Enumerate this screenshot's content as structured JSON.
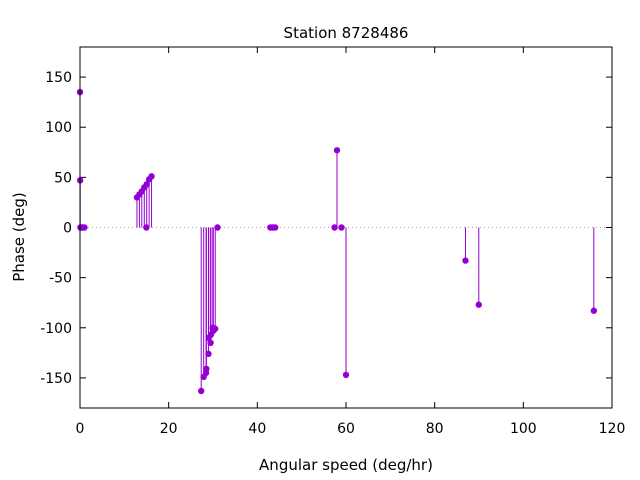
{
  "chart_data": {
    "type": "scatter",
    "style": "impulses-with-points",
    "title": "Station 8728486",
    "xlabel": "Angular speed (deg/hr)",
    "ylabel": "Phase (deg)",
    "xlim": [
      0,
      120
    ],
    "ylim": [
      -180,
      180
    ],
    "xticks": [
      0,
      20,
      40,
      60,
      80,
      100,
      120
    ],
    "yticks": [
      -150,
      -100,
      -50,
      0,
      50,
      100,
      150
    ],
    "grid": false,
    "zero_line": true,
    "legend": "none",
    "series_color": "#9400d3",
    "points": [
      {
        "x": 0.0,
        "y": 135
      },
      {
        "x": 0.04,
        "y": 47
      },
      {
        "x": 0.08,
        "y": 0
      },
      {
        "x": 0.5,
        "y": 0
      },
      {
        "x": 0.55,
        "y": 0
      },
      {
        "x": 1.0,
        "y": 0
      },
      {
        "x": 12.85,
        "y": 30
      },
      {
        "x": 13.4,
        "y": 33
      },
      {
        "x": 13.94,
        "y": 36
      },
      {
        "x": 14.5,
        "y": 40
      },
      {
        "x": 14.96,
        "y": 0
      },
      {
        "x": 15.04,
        "y": 43
      },
      {
        "x": 15.59,
        "y": 48
      },
      {
        "x": 16.14,
        "y": 51
      },
      {
        "x": 27.34,
        "y": -163
      },
      {
        "x": 27.9,
        "y": -149
      },
      {
        "x": 28.44,
        "y": -145
      },
      {
        "x": 28.51,
        "y": -141
      },
      {
        "x": 28.98,
        "y": -126
      },
      {
        "x": 29.03,
        "y": -110
      },
      {
        "x": 29.46,
        "y": -115
      },
      {
        "x": 29.53,
        "y": -107
      },
      {
        "x": 29.96,
        "y": -100
      },
      {
        "x": 30.08,
        "y": -103
      },
      {
        "x": 30.5,
        "y": -101
      },
      {
        "x": 31.02,
        "y": 0
      },
      {
        "x": 42.93,
        "y": 0
      },
      {
        "x": 43.48,
        "y": 0
      },
      {
        "x": 44.03,
        "y": 0
      },
      {
        "x": 57.42,
        "y": 0
      },
      {
        "x": 57.97,
        "y": 77
      },
      {
        "x": 58.98,
        "y": 0
      },
      {
        "x": 60.0,
        "y": -147
      },
      {
        "x": 86.95,
        "y": -33
      },
      {
        "x": 89.95,
        "y": -77
      },
      {
        "x": 115.9,
        "y": -83
      }
    ]
  }
}
